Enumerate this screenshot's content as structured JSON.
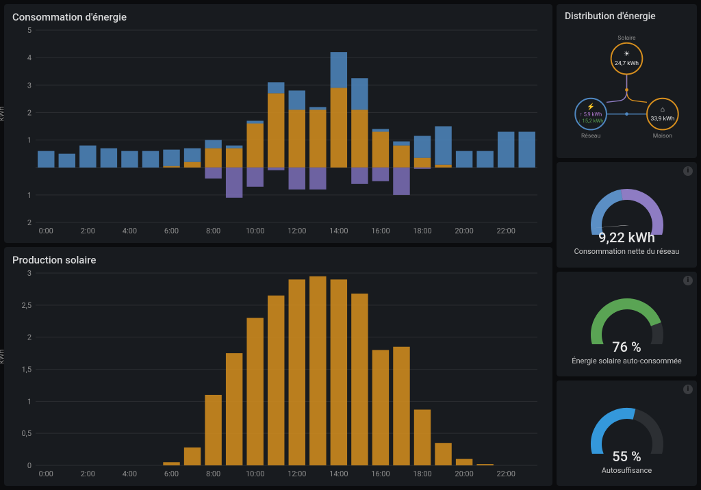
{
  "colors": {
    "panel_bg": "#181b1f",
    "body_bg": "#0b0c0e",
    "grid": "#2c2f33",
    "axis_text": "#8e8e8e",
    "orange": "#d78f1e",
    "blue": "#4f87c0",
    "purple": "#7d6fb8",
    "green": "#5aa454",
    "bright_blue": "#3498db",
    "dark_track": "#2c2f33"
  },
  "consumption": {
    "title": "Consommation d'énergie",
    "ylabel": "kWh",
    "ylim": [
      -2,
      5
    ],
    "yticks": [
      1,
      2,
      3,
      4,
      5
    ],
    "yticks_neg": [
      -1,
      -2
    ],
    "xticks": [
      "0:00",
      "2:00",
      "4:00",
      "6:00",
      "8:00",
      "10:00",
      "12:00",
      "14:00",
      "16:00",
      "18:00",
      "20:00",
      "22:00"
    ],
    "xtick_positions": [
      0,
      2,
      4,
      6,
      8,
      10,
      12,
      14,
      16,
      18,
      20,
      22
    ],
    "bars": [
      {
        "x": 0,
        "orange": 0,
        "blue": 0.6,
        "purple": 0
      },
      {
        "x": 1,
        "orange": 0,
        "blue": 0.5,
        "purple": 0
      },
      {
        "x": 2,
        "orange": 0,
        "blue": 0.8,
        "purple": 0
      },
      {
        "x": 3,
        "orange": 0,
        "blue": 0.7,
        "purple": 0
      },
      {
        "x": 4,
        "orange": 0,
        "blue": 0.6,
        "purple": 0
      },
      {
        "x": 5,
        "orange": 0,
        "blue": 0.6,
        "purple": 0
      },
      {
        "x": 6,
        "orange": 0.05,
        "blue": 0.6,
        "purple": 0
      },
      {
        "x": 7,
        "orange": 0.2,
        "blue": 0.5,
        "purple": 0
      },
      {
        "x": 8,
        "orange": 0.7,
        "blue": 0.3,
        "purple": -0.4
      },
      {
        "x": 9,
        "orange": 0.7,
        "blue": 0.1,
        "purple": -1.1
      },
      {
        "x": 10,
        "orange": 1.6,
        "blue": 0.1,
        "purple": -0.7
      },
      {
        "x": 11,
        "orange": 2.7,
        "blue": 0.4,
        "purple": -0.1
      },
      {
        "x": 12,
        "orange": 2.1,
        "blue": 0.7,
        "purple": -0.8
      },
      {
        "x": 13,
        "orange": 2.1,
        "blue": 0.1,
        "purple": -0.8
      },
      {
        "x": 14,
        "orange": 2.9,
        "blue": 1.3,
        "purple": 0
      },
      {
        "x": 15,
        "orange": 2.1,
        "blue": 1.15,
        "purple": -0.6
      },
      {
        "x": 16,
        "orange": 1.3,
        "blue": 0.1,
        "purple": -0.5
      },
      {
        "x": 17,
        "orange": 0.8,
        "blue": 0.15,
        "purple": -1.0
      },
      {
        "x": 18,
        "orange": 0.35,
        "blue": 0.8,
        "purple": -0.05
      },
      {
        "x": 19,
        "orange": 0.1,
        "blue": 1.4,
        "purple": 0
      },
      {
        "x": 20,
        "orange": 0,
        "blue": 0.6,
        "purple": 0
      },
      {
        "x": 21,
        "orange": 0,
        "blue": 0.6,
        "purple": 0
      },
      {
        "x": 22,
        "orange": 0,
        "blue": 1.3,
        "purple": 0
      },
      {
        "x": 23,
        "orange": 0,
        "blue": 1.3,
        "purple": 0
      }
    ]
  },
  "solar": {
    "title": "Production solaire",
    "ylabel": "kWh",
    "ylim": [
      0,
      3
    ],
    "yticks": [
      0,
      0.5,
      1,
      1.5,
      2,
      2.5,
      3
    ],
    "ytick_labels": [
      "0",
      "0,5",
      "1",
      "1,5",
      "2",
      "2,5",
      "3"
    ],
    "xticks": [
      "0:00",
      "2:00",
      "4:00",
      "6:00",
      "8:00",
      "10:00",
      "12:00",
      "14:00",
      "16:00",
      "18:00",
      "20:00",
      "22:00"
    ],
    "xtick_positions": [
      0,
      2,
      4,
      6,
      8,
      10,
      12,
      14,
      16,
      18,
      20,
      22
    ],
    "bars": [
      {
        "x": 6,
        "v": 0.05
      },
      {
        "x": 7,
        "v": 0.28
      },
      {
        "x": 8,
        "v": 1.1
      },
      {
        "x": 9,
        "v": 1.75
      },
      {
        "x": 10,
        "v": 2.3
      },
      {
        "x": 11,
        "v": 2.65
      },
      {
        "x": 12,
        "v": 2.9
      },
      {
        "x": 13,
        "v": 2.95
      },
      {
        "x": 14,
        "v": 2.9
      },
      {
        "x": 15,
        "v": 2.68
      },
      {
        "x": 16,
        "v": 1.8
      },
      {
        "x": 17,
        "v": 1.85
      },
      {
        "x": 18,
        "v": 0.87
      },
      {
        "x": 19,
        "v": 0.35
      },
      {
        "x": 20,
        "v": 0.1
      },
      {
        "x": 21,
        "v": 0.02
      }
    ]
  },
  "distribution": {
    "title": "Distribution d'énergie",
    "solaire": {
      "label": "Solaire",
      "value": "24,7 kWh",
      "color": "#d78f1e"
    },
    "reseau": {
      "label": "Réseau",
      "in": "↑ 5,9 kWh",
      "out": "↓ 15,2 kWh",
      "color": "#4f87c0",
      "in_color": "#b67dd6",
      "out_color": "#5aa454"
    },
    "maison": {
      "label": "Maison",
      "value": "33,9 kWh",
      "color": "#d78f1e"
    }
  },
  "gauge1": {
    "value": "9,22 kWh",
    "label": "Consommation nette du réseau",
    "arcs": [
      {
        "start": -135,
        "end": -10,
        "color": "#5b8fc5"
      },
      {
        "start": -10,
        "end": 135,
        "color": "#8e7cc3"
      }
    ],
    "needle_angle": -95
  },
  "gauge2": {
    "value": "76 %",
    "label": "Énergie solaire auto-consommée",
    "fill_color": "#5aa454",
    "track_color": "#2c2f33",
    "fraction": 0.76
  },
  "gauge3": {
    "value": "55 %",
    "label": "Autosuffisance",
    "fill_color": "#3498db",
    "track_color": "#2c2f33",
    "fraction": 0.55
  }
}
